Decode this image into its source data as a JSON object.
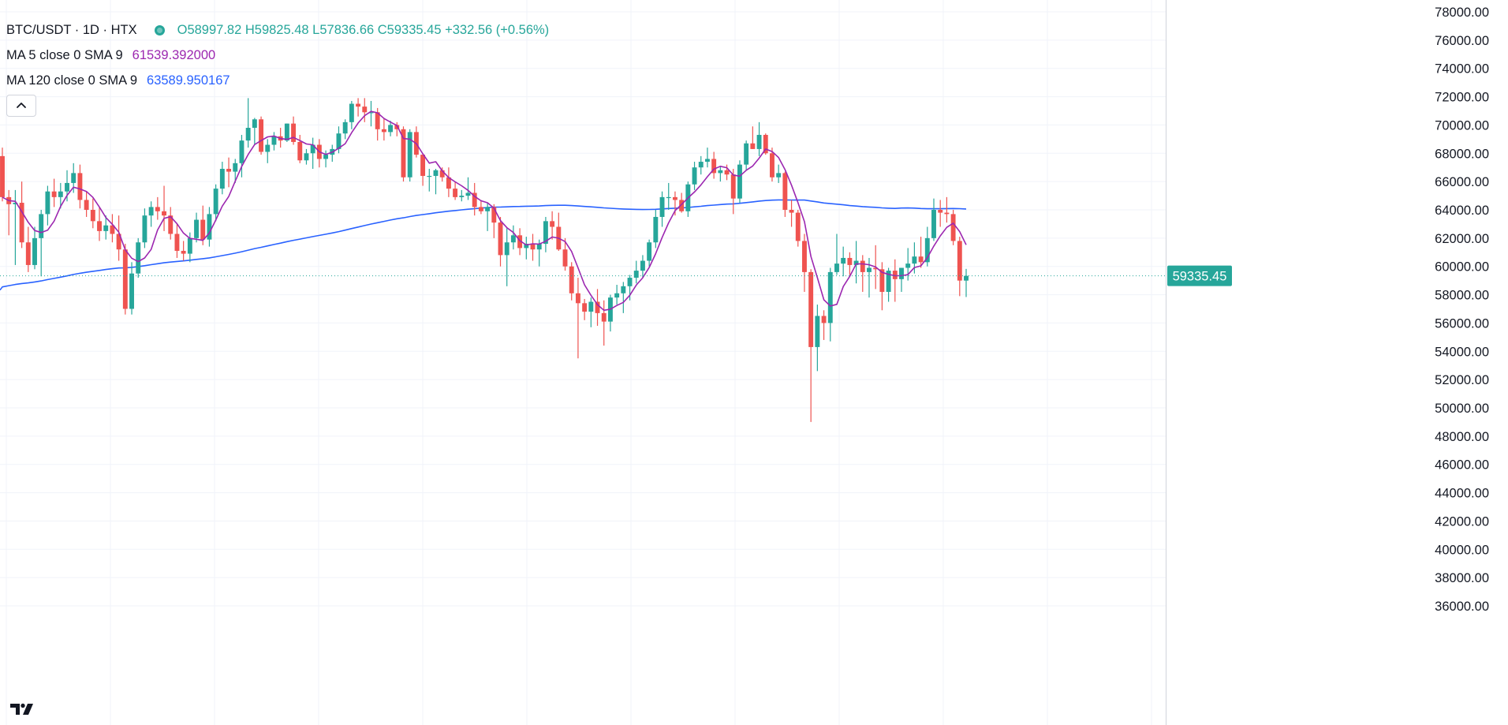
{
  "header": {
    "symbol_title": "BTC/USDT · 1D · HTX",
    "ohlc_text": "O58997.82 H59825.48 L57836.66 C59335.45 +332.56 (+0.56%)",
    "ma5_label": "MA 5 close 0 SMA 9",
    "ma5_value": "61539.392000",
    "ma120_label": "MA 120 close 0 SMA 9",
    "ma120_value": "63589.950167",
    "collapse_icon": "chevron-up-icon",
    "logo_icon": "tradingview-logo-icon",
    "status_color": "#26a69a"
  },
  "colors": {
    "up": "#26a69a",
    "down": "#ef5350",
    "ma5": "#9c27b0",
    "ma120": "#2962ff",
    "axis": "#d1d4dc",
    "grid": "#f0f3fa",
    "text": "#131722",
    "price_label_bg": "#26a69a"
  },
  "chart_data": {
    "type": "candlestick",
    "title": "",
    "xlabel": "",
    "ylabel": "",
    "ylim": [
      35000,
      78000
    ],
    "y_ticks": [
      "78000.00",
      "76000.00",
      "74000.00",
      "72000.00",
      "70000.00",
      "68000.00",
      "66000.00",
      "64000.00",
      "62000.00",
      "60000.00",
      "58000.00",
      "56000.00",
      "54000.00",
      "52000.00",
      "50000.00",
      "48000.00",
      "46000.00",
      "44000.00",
      "42000.00",
      "40000.00",
      "38000.00",
      "36000.00"
    ],
    "current_price": 59335.45,
    "current_price_label": "59335.45",
    "grid": true,
    "legend": "top-left",
    "candles": [
      {
        "o": 67800,
        "h": 68400,
        "l": 64600,
        "c": 64900
      },
      {
        "o": 64900,
        "h": 65400,
        "l": 62200,
        "c": 64400
      },
      {
        "o": 64400,
        "h": 65400,
        "l": 60100,
        "c": 64500
      },
      {
        "o": 64500,
        "h": 66000,
        "l": 61300,
        "c": 61700
      },
      {
        "o": 61700,
        "h": 62800,
        "l": 59600,
        "c": 60100
      },
      {
        "o": 60100,
        "h": 62800,
        "l": 59800,
        "c": 62000
      },
      {
        "o": 62000,
        "h": 64000,
        "l": 59300,
        "c": 63700
      },
      {
        "o": 63700,
        "h": 65700,
        "l": 62900,
        "c": 65300
      },
      {
        "o": 65300,
        "h": 66200,
        "l": 64200,
        "c": 64900
      },
      {
        "o": 64900,
        "h": 65900,
        "l": 64100,
        "c": 65300
      },
      {
        "o": 65300,
        "h": 66800,
        "l": 64600,
        "c": 65900
      },
      {
        "o": 65900,
        "h": 67300,
        "l": 65200,
        "c": 66600
      },
      {
        "o": 66600,
        "h": 67200,
        "l": 64100,
        "c": 64700
      },
      {
        "o": 64700,
        "h": 65300,
        "l": 63500,
        "c": 64000
      },
      {
        "o": 64000,
        "h": 64800,
        "l": 62700,
        "c": 63200
      },
      {
        "o": 63200,
        "h": 64200,
        "l": 61800,
        "c": 62500
      },
      {
        "o": 62500,
        "h": 63600,
        "l": 61900,
        "c": 62900
      },
      {
        "o": 62900,
        "h": 63700,
        "l": 61700,
        "c": 62300
      },
      {
        "o": 62300,
        "h": 63600,
        "l": 60400,
        "c": 61200
      },
      {
        "o": 61200,
        "h": 61600,
        "l": 56600,
        "c": 57000
      },
      {
        "o": 57000,
        "h": 60300,
        "l": 56600,
        "c": 59500
      },
      {
        "o": 59500,
        "h": 62000,
        "l": 59200,
        "c": 61700
      },
      {
        "o": 61700,
        "h": 64100,
        "l": 61300,
        "c": 63600
      },
      {
        "o": 63600,
        "h": 64600,
        "l": 62800,
        "c": 64200
      },
      {
        "o": 64200,
        "h": 64900,
        "l": 63300,
        "c": 63900
      },
      {
        "o": 63900,
        "h": 65700,
        "l": 62500,
        "c": 63600
      },
      {
        "o": 63600,
        "h": 64200,
        "l": 61900,
        "c": 62300
      },
      {
        "o": 62300,
        "h": 63000,
        "l": 60600,
        "c": 61100
      },
      {
        "o": 61100,
        "h": 61800,
        "l": 60400,
        "c": 60900
      },
      {
        "o": 60900,
        "h": 62400,
        "l": 60300,
        "c": 62000
      },
      {
        "o": 62000,
        "h": 63800,
        "l": 61700,
        "c": 63300
      },
      {
        "o": 63300,
        "h": 64300,
        "l": 61500,
        "c": 61900
      },
      {
        "o": 61900,
        "h": 64200,
        "l": 61400,
        "c": 63700
      },
      {
        "o": 63700,
        "h": 65800,
        "l": 63200,
        "c": 65500
      },
      {
        "o": 65500,
        "h": 67400,
        "l": 65100,
        "c": 66900
      },
      {
        "o": 66900,
        "h": 67700,
        "l": 65600,
        "c": 66700
      },
      {
        "o": 66700,
        "h": 67600,
        "l": 65900,
        "c": 67300
      },
      {
        "o": 67300,
        "h": 69300,
        "l": 66300,
        "c": 68900
      },
      {
        "o": 68900,
        "h": 71900,
        "l": 68400,
        "c": 69800
      },
      {
        "o": 69800,
        "h": 70500,
        "l": 68600,
        "c": 70400
      },
      {
        "o": 70400,
        "h": 70600,
        "l": 67900,
        "c": 68100
      },
      {
        "o": 68100,
        "h": 69000,
        "l": 67300,
        "c": 68600
      },
      {
        "o": 68600,
        "h": 69500,
        "l": 68200,
        "c": 69200
      },
      {
        "o": 69200,
        "h": 69800,
        "l": 68400,
        "c": 68900
      },
      {
        "o": 68900,
        "h": 70100,
        "l": 68800,
        "c": 70100
      },
      {
        "o": 70100,
        "h": 70600,
        "l": 68600,
        "c": 68800
      },
      {
        "o": 68800,
        "h": 69300,
        "l": 67300,
        "c": 67500
      },
      {
        "o": 67500,
        "h": 68300,
        "l": 67200,
        "c": 68000
      },
      {
        "o": 68000,
        "h": 69100,
        "l": 66900,
        "c": 68600
      },
      {
        "o": 68600,
        "h": 69000,
        "l": 67000,
        "c": 67600
      },
      {
        "o": 67600,
        "h": 68200,
        "l": 67000,
        "c": 67900
      },
      {
        "o": 67900,
        "h": 68600,
        "l": 67400,
        "c": 68300
      },
      {
        "o": 68300,
        "h": 69900,
        "l": 68000,
        "c": 69400
      },
      {
        "o": 69400,
        "h": 70400,
        "l": 69000,
        "c": 70200
      },
      {
        "o": 70200,
        "h": 71700,
        "l": 69700,
        "c": 71500
      },
      {
        "o": 71500,
        "h": 71900,
        "l": 70600,
        "c": 71300
      },
      {
        "o": 71300,
        "h": 71900,
        "l": 70200,
        "c": 70900
      },
      {
        "o": 70900,
        "h": 71700,
        "l": 69900,
        "c": 70900
      },
      {
        "o": 70900,
        "h": 71200,
        "l": 68900,
        "c": 69700
      },
      {
        "o": 69700,
        "h": 70500,
        "l": 68900,
        "c": 69500
      },
      {
        "o": 69500,
        "h": 70300,
        "l": 69200,
        "c": 70000
      },
      {
        "o": 70000,
        "h": 70200,
        "l": 69200,
        "c": 69700
      },
      {
        "o": 69700,
        "h": 69900,
        "l": 66000,
        "c": 66300
      },
      {
        "o": 66300,
        "h": 69700,
        "l": 66000,
        "c": 69500
      },
      {
        "o": 69500,
        "h": 69900,
        "l": 67700,
        "c": 67900
      },
      {
        "o": 67900,
        "h": 68000,
        "l": 65700,
        "c": 66400
      },
      {
        "o": 66400,
        "h": 66900,
        "l": 65300,
        "c": 66400
      },
      {
        "o": 66400,
        "h": 66900,
        "l": 65100,
        "c": 66800
      },
      {
        "o": 66800,
        "h": 67000,
        "l": 66000,
        "c": 66300
      },
      {
        "o": 66300,
        "h": 67000,
        "l": 64900,
        "c": 65500
      },
      {
        "o": 65500,
        "h": 66000,
        "l": 64700,
        "c": 64900
      },
      {
        "o": 64900,
        "h": 65400,
        "l": 64600,
        "c": 65000
      },
      {
        "o": 65000,
        "h": 66300,
        "l": 64700,
        "c": 65200
      },
      {
        "o": 65200,
        "h": 65900,
        "l": 63600,
        "c": 64200
      },
      {
        "o": 64200,
        "h": 64700,
        "l": 63700,
        "c": 63900
      },
      {
        "o": 63900,
        "h": 64500,
        "l": 62500,
        "c": 64200
      },
      {
        "o": 64200,
        "h": 64400,
        "l": 62000,
        "c": 63100
      },
      {
        "o": 63100,
        "h": 63500,
        "l": 60000,
        "c": 60800
      },
      {
        "o": 60800,
        "h": 62700,
        "l": 58600,
        "c": 61700
      },
      {
        "o": 61700,
        "h": 62900,
        "l": 61200,
        "c": 62200
      },
      {
        "o": 62200,
        "h": 62700,
        "l": 60800,
        "c": 61300
      },
      {
        "o": 61300,
        "h": 62100,
        "l": 60500,
        "c": 61600
      },
      {
        "o": 61600,
        "h": 62300,
        "l": 60400,
        "c": 61200
      },
      {
        "o": 61200,
        "h": 61900,
        "l": 60000,
        "c": 61600
      },
      {
        "o": 61600,
        "h": 63500,
        "l": 61000,
        "c": 63200
      },
      {
        "o": 63200,
        "h": 63900,
        "l": 61900,
        "c": 62800
      },
      {
        "o": 62800,
        "h": 63800,
        "l": 61100,
        "c": 61200
      },
      {
        "o": 61200,
        "h": 62000,
        "l": 59700,
        "c": 60000
      },
      {
        "o": 60000,
        "h": 60300,
        "l": 57600,
        "c": 58100
      },
      {
        "o": 58100,
        "h": 59200,
        "l": 53500,
        "c": 57400
      },
      {
        "o": 57400,
        "h": 57700,
        "l": 56200,
        "c": 56800
      },
      {
        "o": 56800,
        "h": 57800,
        "l": 55700,
        "c": 57500
      },
      {
        "o": 57500,
        "h": 58400,
        "l": 55800,
        "c": 56700
      },
      {
        "o": 56700,
        "h": 57600,
        "l": 54400,
        "c": 56100
      },
      {
        "o": 56100,
        "h": 58000,
        "l": 55400,
        "c": 57800
      },
      {
        "o": 57800,
        "h": 58700,
        "l": 57300,
        "c": 58100
      },
      {
        "o": 58100,
        "h": 58900,
        "l": 56700,
        "c": 58600
      },
      {
        "o": 58600,
        "h": 59400,
        "l": 57600,
        "c": 59200
      },
      {
        "o": 59200,
        "h": 60400,
        "l": 58800,
        "c": 59700
      },
      {
        "o": 59700,
        "h": 60800,
        "l": 59200,
        "c": 60400
      },
      {
        "o": 60400,
        "h": 61900,
        "l": 60000,
        "c": 61700
      },
      {
        "o": 61700,
        "h": 64000,
        "l": 61300,
        "c": 63500
      },
      {
        "o": 63500,
        "h": 65300,
        "l": 62800,
        "c": 64900
      },
      {
        "o": 64900,
        "h": 65900,
        "l": 64000,
        "c": 64900
      },
      {
        "o": 64900,
        "h": 65300,
        "l": 63600,
        "c": 64700
      },
      {
        "o": 64700,
        "h": 65200,
        "l": 63800,
        "c": 63900
      },
      {
        "o": 63900,
        "h": 66000,
        "l": 63500,
        "c": 65800
      },
      {
        "o": 65800,
        "h": 67400,
        "l": 65400,
        "c": 67000
      },
      {
        "o": 67000,
        "h": 67800,
        "l": 66500,
        "c": 67400
      },
      {
        "o": 67400,
        "h": 68400,
        "l": 67000,
        "c": 67600
      },
      {
        "o": 67600,
        "h": 68100,
        "l": 66200,
        "c": 66600
      },
      {
        "o": 66600,
        "h": 67100,
        "l": 66000,
        "c": 66800
      },
      {
        "o": 66800,
        "h": 67200,
        "l": 66100,
        "c": 66500
      },
      {
        "o": 66500,
        "h": 66900,
        "l": 63700,
        "c": 64800
      },
      {
        "o": 64800,
        "h": 67500,
        "l": 64500,
        "c": 67200
      },
      {
        "o": 67200,
        "h": 68900,
        "l": 66800,
        "c": 68700
      },
      {
        "o": 68700,
        "h": 69900,
        "l": 68300,
        "c": 68300
      },
      {
        "o": 68300,
        "h": 70200,
        "l": 67800,
        "c": 69300
      },
      {
        "o": 69300,
        "h": 69400,
        "l": 67900,
        "c": 68000
      },
      {
        "o": 68000,
        "h": 68400,
        "l": 66000,
        "c": 66300
      },
      {
        "o": 66300,
        "h": 67200,
        "l": 65900,
        "c": 66600
      },
      {
        "o": 66600,
        "h": 66700,
        "l": 63500,
        "c": 64000
      },
      {
        "o": 64000,
        "h": 64700,
        "l": 62800,
        "c": 63800
      },
      {
        "o": 63800,
        "h": 64000,
        "l": 61400,
        "c": 61800
      },
      {
        "o": 61800,
        "h": 62300,
        "l": 58200,
        "c": 59600
      },
      {
        "o": 59600,
        "h": 59800,
        "l": 49000,
        "c": 54300
      },
      {
        "o": 54300,
        "h": 57300,
        "l": 52600,
        "c": 56500
      },
      {
        "o": 56500,
        "h": 56900,
        "l": 54800,
        "c": 56000
      },
      {
        "o": 56000,
        "h": 59900,
        "l": 54700,
        "c": 59600
      },
      {
        "o": 59600,
        "h": 62300,
        "l": 59400,
        "c": 60200
      },
      {
        "o": 60200,
        "h": 61400,
        "l": 59300,
        "c": 60600
      },
      {
        "o": 60600,
        "h": 61000,
        "l": 59400,
        "c": 60100
      },
      {
        "o": 60100,
        "h": 61800,
        "l": 58800,
        "c": 60400
      },
      {
        "o": 60400,
        "h": 60800,
        "l": 58200,
        "c": 59600
      },
      {
        "o": 59600,
        "h": 60600,
        "l": 57800,
        "c": 59900
      },
      {
        "o": 59900,
        "h": 61500,
        "l": 58400,
        "c": 59800
      },
      {
        "o": 59800,
        "h": 60300,
        "l": 56900,
        "c": 58200
      },
      {
        "o": 58200,
        "h": 59900,
        "l": 57500,
        "c": 59700
      },
      {
        "o": 59700,
        "h": 60500,
        "l": 57500,
        "c": 59100
      },
      {
        "o": 59100,
        "h": 59900,
        "l": 58200,
        "c": 59900
      },
      {
        "o": 59900,
        "h": 61300,
        "l": 59000,
        "c": 60200
      },
      {
        "o": 60200,
        "h": 61700,
        "l": 59500,
        "c": 60700
      },
      {
        "o": 60700,
        "h": 62100,
        "l": 59900,
        "c": 60300
      },
      {
        "o": 60300,
        "h": 62800,
        "l": 60000,
        "c": 62000
      },
      {
        "o": 62000,
        "h": 64800,
        "l": 61800,
        "c": 64000
      },
      {
        "o": 64000,
        "h": 64700,
        "l": 62800,
        "c": 63800
      },
      {
        "o": 63800,
        "h": 64900,
        "l": 63100,
        "c": 63700
      },
      {
        "o": 63700,
        "h": 64000,
        "l": 61500,
        "c": 61800
      },
      {
        "o": 61800,
        "h": 62100,
        "l": 57900,
        "c": 59000
      },
      {
        "o": 58997.82,
        "h": 59825.48,
        "l": 57836.66,
        "c": 59335.45
      }
    ],
    "ma5_series": [],
    "ma120_series": []
  }
}
